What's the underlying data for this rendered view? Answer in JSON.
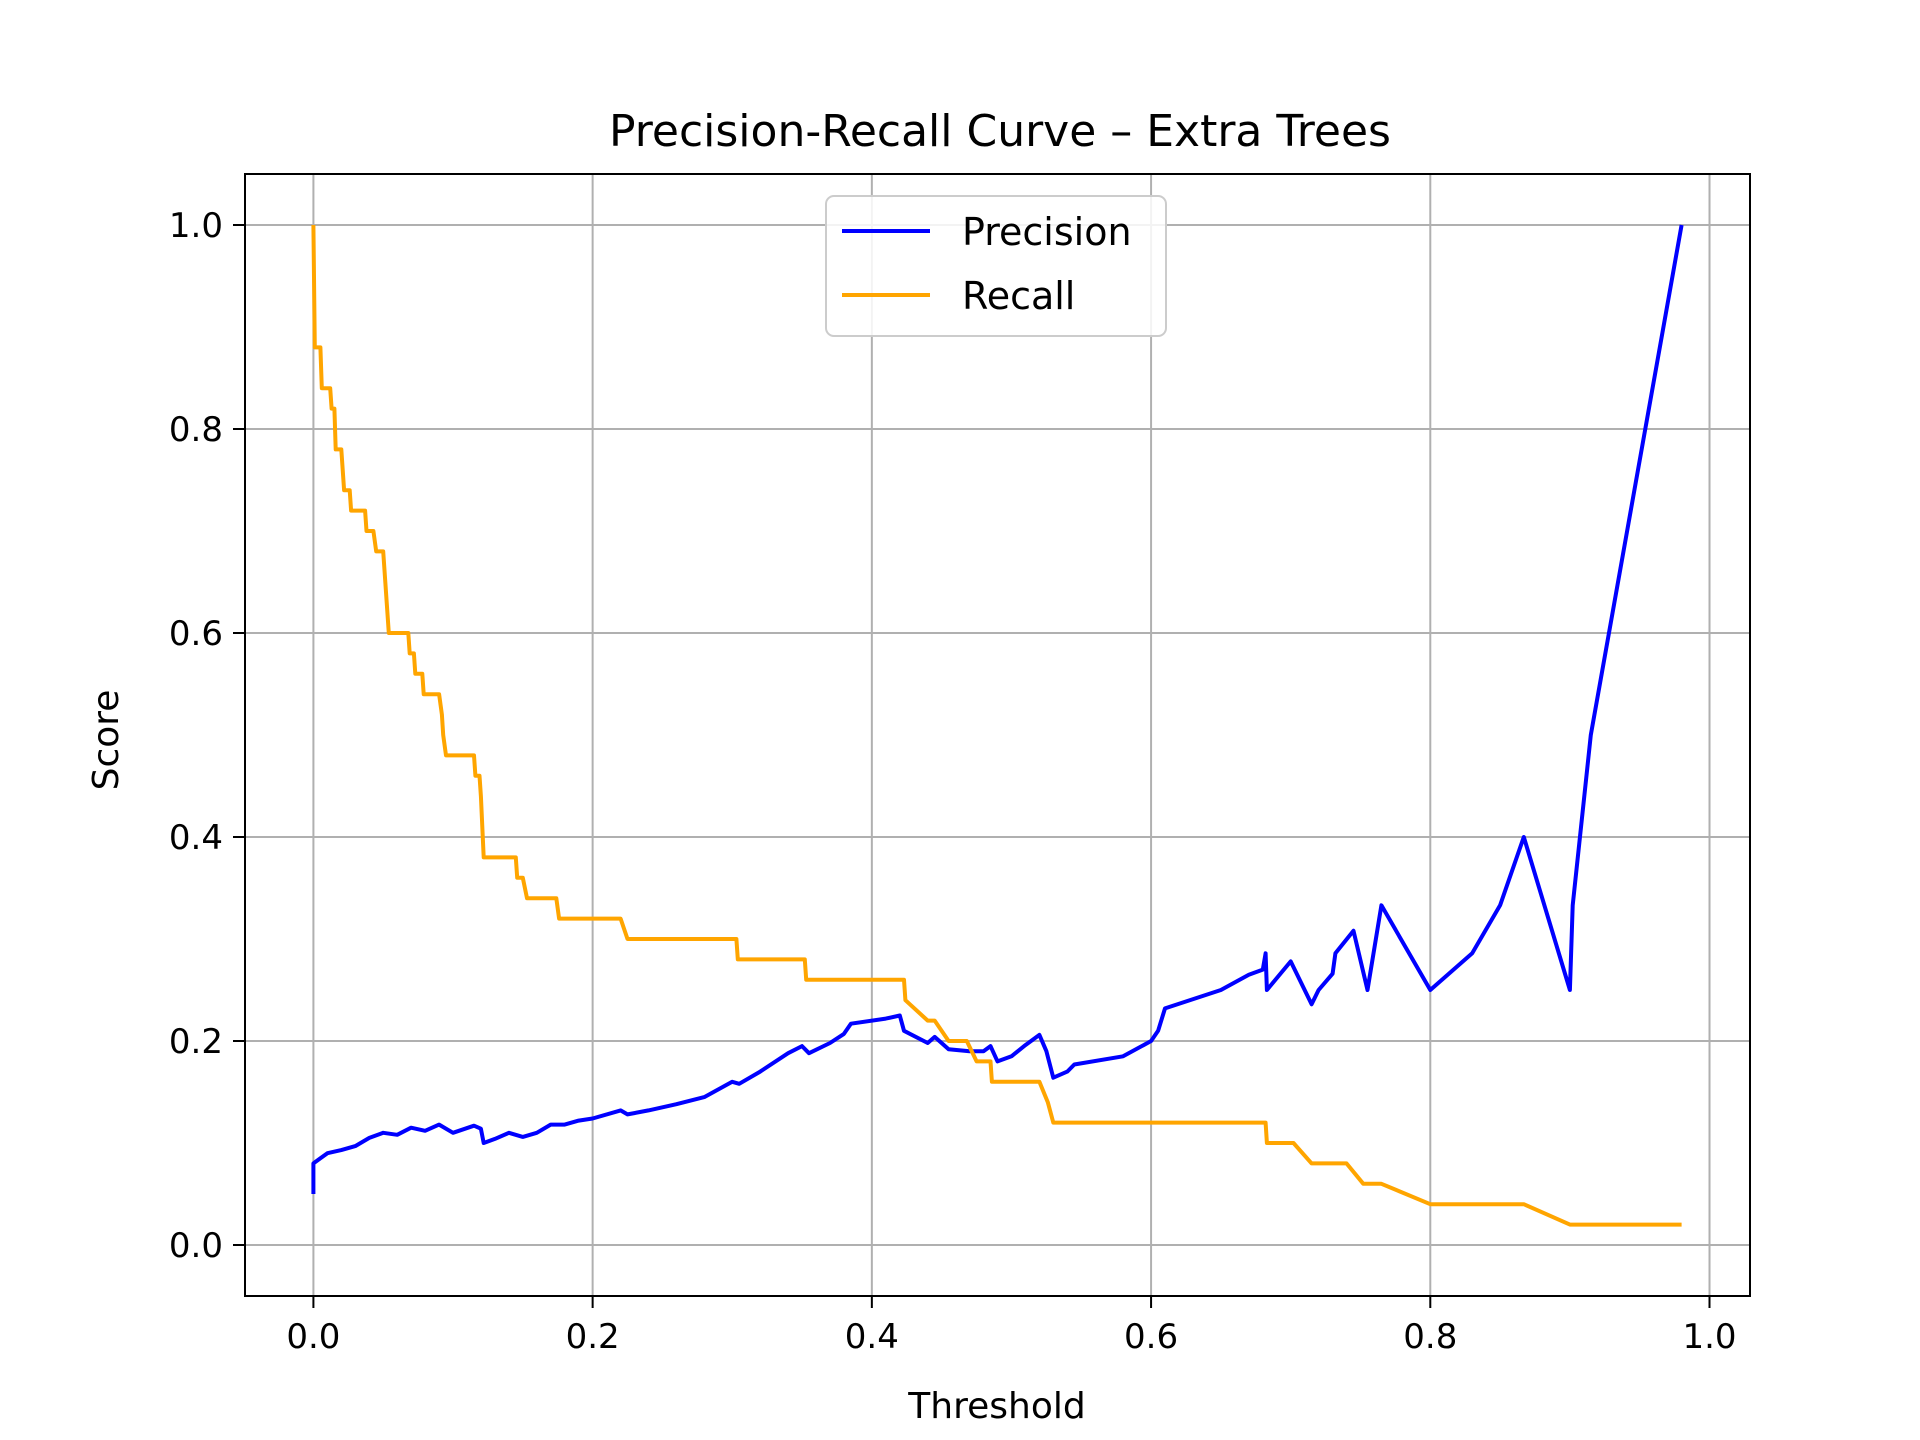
{
  "chart_data": {
    "type": "line",
    "title": "Precision-Recall Curve – Extra Trees",
    "xlabel": "Threshold",
    "ylabel": "Score",
    "xlim": [
      -0.049,
      1.029
    ],
    "ylim": [
      -0.05,
      1.05
    ],
    "xticks": [
      0.0,
      0.2,
      0.4,
      0.6,
      0.8,
      1.0
    ],
    "xtick_labels": [
      "0.0",
      "0.2",
      "0.4",
      "0.6",
      "0.8",
      "1.0"
    ],
    "yticks": [
      0.0,
      0.2,
      0.4,
      0.6,
      0.8,
      1.0
    ],
    "ytick_labels": [
      "0.0",
      "0.2",
      "0.4",
      "0.6",
      "0.8",
      "1.0"
    ],
    "grid": true,
    "legend_position": "upper center",
    "series": [
      {
        "name": "Precision",
        "color": "#0000ff",
        "points": [
          [
            0.0,
            0.05
          ],
          [
            0.0,
            0.08
          ],
          [
            0.005,
            0.085
          ],
          [
            0.01,
            0.09
          ],
          [
            0.02,
            0.093
          ],
          [
            0.03,
            0.097
          ],
          [
            0.04,
            0.105
          ],
          [
            0.05,
            0.11
          ],
          [
            0.06,
            0.108
          ],
          [
            0.07,
            0.115
          ],
          [
            0.08,
            0.112
          ],
          [
            0.09,
            0.118
          ],
          [
            0.1,
            0.11
          ],
          [
            0.115,
            0.117
          ],
          [
            0.12,
            0.114
          ],
          [
            0.122,
            0.1
          ],
          [
            0.13,
            0.104
          ],
          [
            0.14,
            0.11
          ],
          [
            0.15,
            0.106
          ],
          [
            0.16,
            0.11
          ],
          [
            0.17,
            0.118
          ],
          [
            0.18,
            0.118
          ],
          [
            0.19,
            0.122
          ],
          [
            0.2,
            0.124
          ],
          [
            0.22,
            0.132
          ],
          [
            0.225,
            0.128
          ],
          [
            0.24,
            0.132
          ],
          [
            0.26,
            0.138
          ],
          [
            0.28,
            0.145
          ],
          [
            0.3,
            0.16
          ],
          [
            0.305,
            0.158
          ],
          [
            0.32,
            0.17
          ],
          [
            0.34,
            0.188
          ],
          [
            0.35,
            0.195
          ],
          [
            0.355,
            0.188
          ],
          [
            0.37,
            0.198
          ],
          [
            0.38,
            0.207
          ],
          [
            0.385,
            0.217
          ],
          [
            0.41,
            0.222
          ],
          [
            0.42,
            0.225
          ],
          [
            0.423,
            0.21
          ],
          [
            0.44,
            0.198
          ],
          [
            0.445,
            0.204
          ],
          [
            0.455,
            0.192
          ],
          [
            0.47,
            0.19
          ],
          [
            0.48,
            0.19
          ],
          [
            0.485,
            0.195
          ],
          [
            0.49,
            0.18
          ],
          [
            0.5,
            0.185
          ],
          [
            0.51,
            0.196
          ],
          [
            0.52,
            0.206
          ],
          [
            0.525,
            0.19
          ],
          [
            0.53,
            0.164
          ],
          [
            0.54,
            0.17
          ],
          [
            0.545,
            0.177
          ],
          [
            0.58,
            0.185
          ],
          [
            0.6,
            0.2
          ],
          [
            0.605,
            0.21
          ],
          [
            0.61,
            0.232
          ],
          [
            0.65,
            0.25
          ],
          [
            0.67,
            0.265
          ],
          [
            0.68,
            0.27
          ],
          [
            0.682,
            0.286
          ],
          [
            0.683,
            0.25
          ],
          [
            0.7,
            0.278
          ],
          [
            0.715,
            0.236
          ],
          [
            0.72,
            0.25
          ],
          [
            0.73,
            0.266
          ],
          [
            0.732,
            0.286
          ],
          [
            0.745,
            0.308
          ],
          [
            0.755,
            0.25
          ],
          [
            0.765,
            0.333
          ],
          [
            0.8,
            0.25
          ],
          [
            0.83,
            0.286
          ],
          [
            0.85,
            0.333
          ],
          [
            0.867,
            0.4
          ],
          [
            0.9,
            0.25
          ],
          [
            0.902,
            0.333
          ],
          [
            0.915,
            0.5
          ],
          [
            0.98,
            1.0
          ]
        ]
      },
      {
        "name": "Recall",
        "color": "#ffa500",
        "points": [
          [
            0.0,
            1.0
          ],
          [
            0.001,
            0.88
          ],
          [
            0.005,
            0.88
          ],
          [
            0.006,
            0.84
          ],
          [
            0.012,
            0.84
          ],
          [
            0.013,
            0.82
          ],
          [
            0.015,
            0.82
          ],
          [
            0.016,
            0.78
          ],
          [
            0.02,
            0.78
          ],
          [
            0.021,
            0.76
          ],
          [
            0.022,
            0.74
          ],
          [
            0.026,
            0.74
          ],
          [
            0.027,
            0.72
          ],
          [
            0.037,
            0.72
          ],
          [
            0.038,
            0.7
          ],
          [
            0.043,
            0.7
          ],
          [
            0.045,
            0.68
          ],
          [
            0.05,
            0.68
          ],
          [
            0.051,
            0.66
          ],
          [
            0.052,
            0.64
          ],
          [
            0.054,
            0.6
          ],
          [
            0.068,
            0.6
          ],
          [
            0.069,
            0.58
          ],
          [
            0.072,
            0.58
          ],
          [
            0.073,
            0.56
          ],
          [
            0.078,
            0.56
          ],
          [
            0.079,
            0.54
          ],
          [
            0.09,
            0.54
          ],
          [
            0.092,
            0.52
          ],
          [
            0.093,
            0.5
          ],
          [
            0.095,
            0.48
          ],
          [
            0.115,
            0.48
          ],
          [
            0.116,
            0.46
          ],
          [
            0.119,
            0.46
          ],
          [
            0.12,
            0.44
          ],
          [
            0.122,
            0.38
          ],
          [
            0.145,
            0.38
          ],
          [
            0.146,
            0.36
          ],
          [
            0.15,
            0.36
          ],
          [
            0.153,
            0.34
          ],
          [
            0.174,
            0.34
          ],
          [
            0.176,
            0.32
          ],
          [
            0.22,
            0.32
          ],
          [
            0.225,
            0.3
          ],
          [
            0.303,
            0.3
          ],
          [
            0.304,
            0.28
          ],
          [
            0.352,
            0.28
          ],
          [
            0.353,
            0.26
          ],
          [
            0.423,
            0.26
          ],
          [
            0.424,
            0.24
          ],
          [
            0.44,
            0.22
          ],
          [
            0.445,
            0.22
          ],
          [
            0.455,
            0.2
          ],
          [
            0.468,
            0.2
          ],
          [
            0.475,
            0.18
          ],
          [
            0.485,
            0.18
          ],
          [
            0.486,
            0.16
          ],
          [
            0.52,
            0.16
          ],
          [
            0.526,
            0.14
          ],
          [
            0.53,
            0.12
          ],
          [
            0.682,
            0.12
          ],
          [
            0.683,
            0.1
          ],
          [
            0.702,
            0.1
          ],
          [
            0.715,
            0.08
          ],
          [
            0.74,
            0.08
          ],
          [
            0.752,
            0.06
          ],
          [
            0.765,
            0.06
          ],
          [
            0.8,
            0.04
          ],
          [
            0.867,
            0.04
          ],
          [
            0.9,
            0.02
          ],
          [
            0.98,
            0.02
          ]
        ]
      }
    ]
  }
}
